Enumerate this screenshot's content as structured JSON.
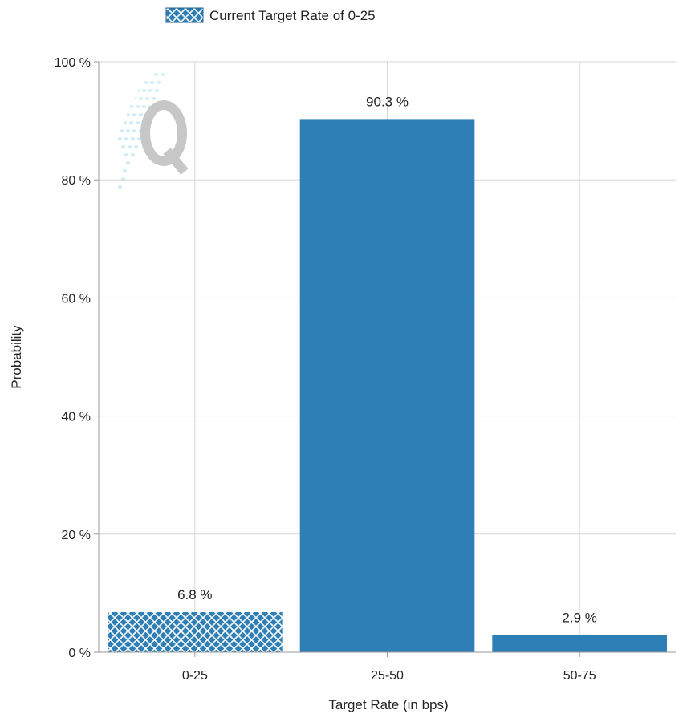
{
  "chart_data": {
    "type": "bar",
    "categories": [
      "0-25",
      "25-50",
      "50-75"
    ],
    "values": [
      6.8,
      90.3,
      2.9
    ],
    "value_labels": [
      "6.8 %",
      "90.3 %",
      "2.9 %"
    ],
    "highlighted_category": "0-25",
    "legend": {
      "label": "Current Target Rate of 0-25",
      "placement": "top"
    },
    "xlabel": "Target Rate (in bps)",
    "ylabel": "Probability",
    "ylim": [
      0,
      100
    ],
    "yticks": [
      0,
      20,
      40,
      60,
      80,
      100
    ],
    "ytick_labels": [
      "0 %",
      "20 %",
      "40 %",
      "60 %",
      "80 %",
      "100 %"
    ],
    "grid": true,
    "colors": {
      "bar": "#2e7fb5",
      "grid": "#d6d6d6",
      "axis": "#9a9a9a"
    }
  }
}
